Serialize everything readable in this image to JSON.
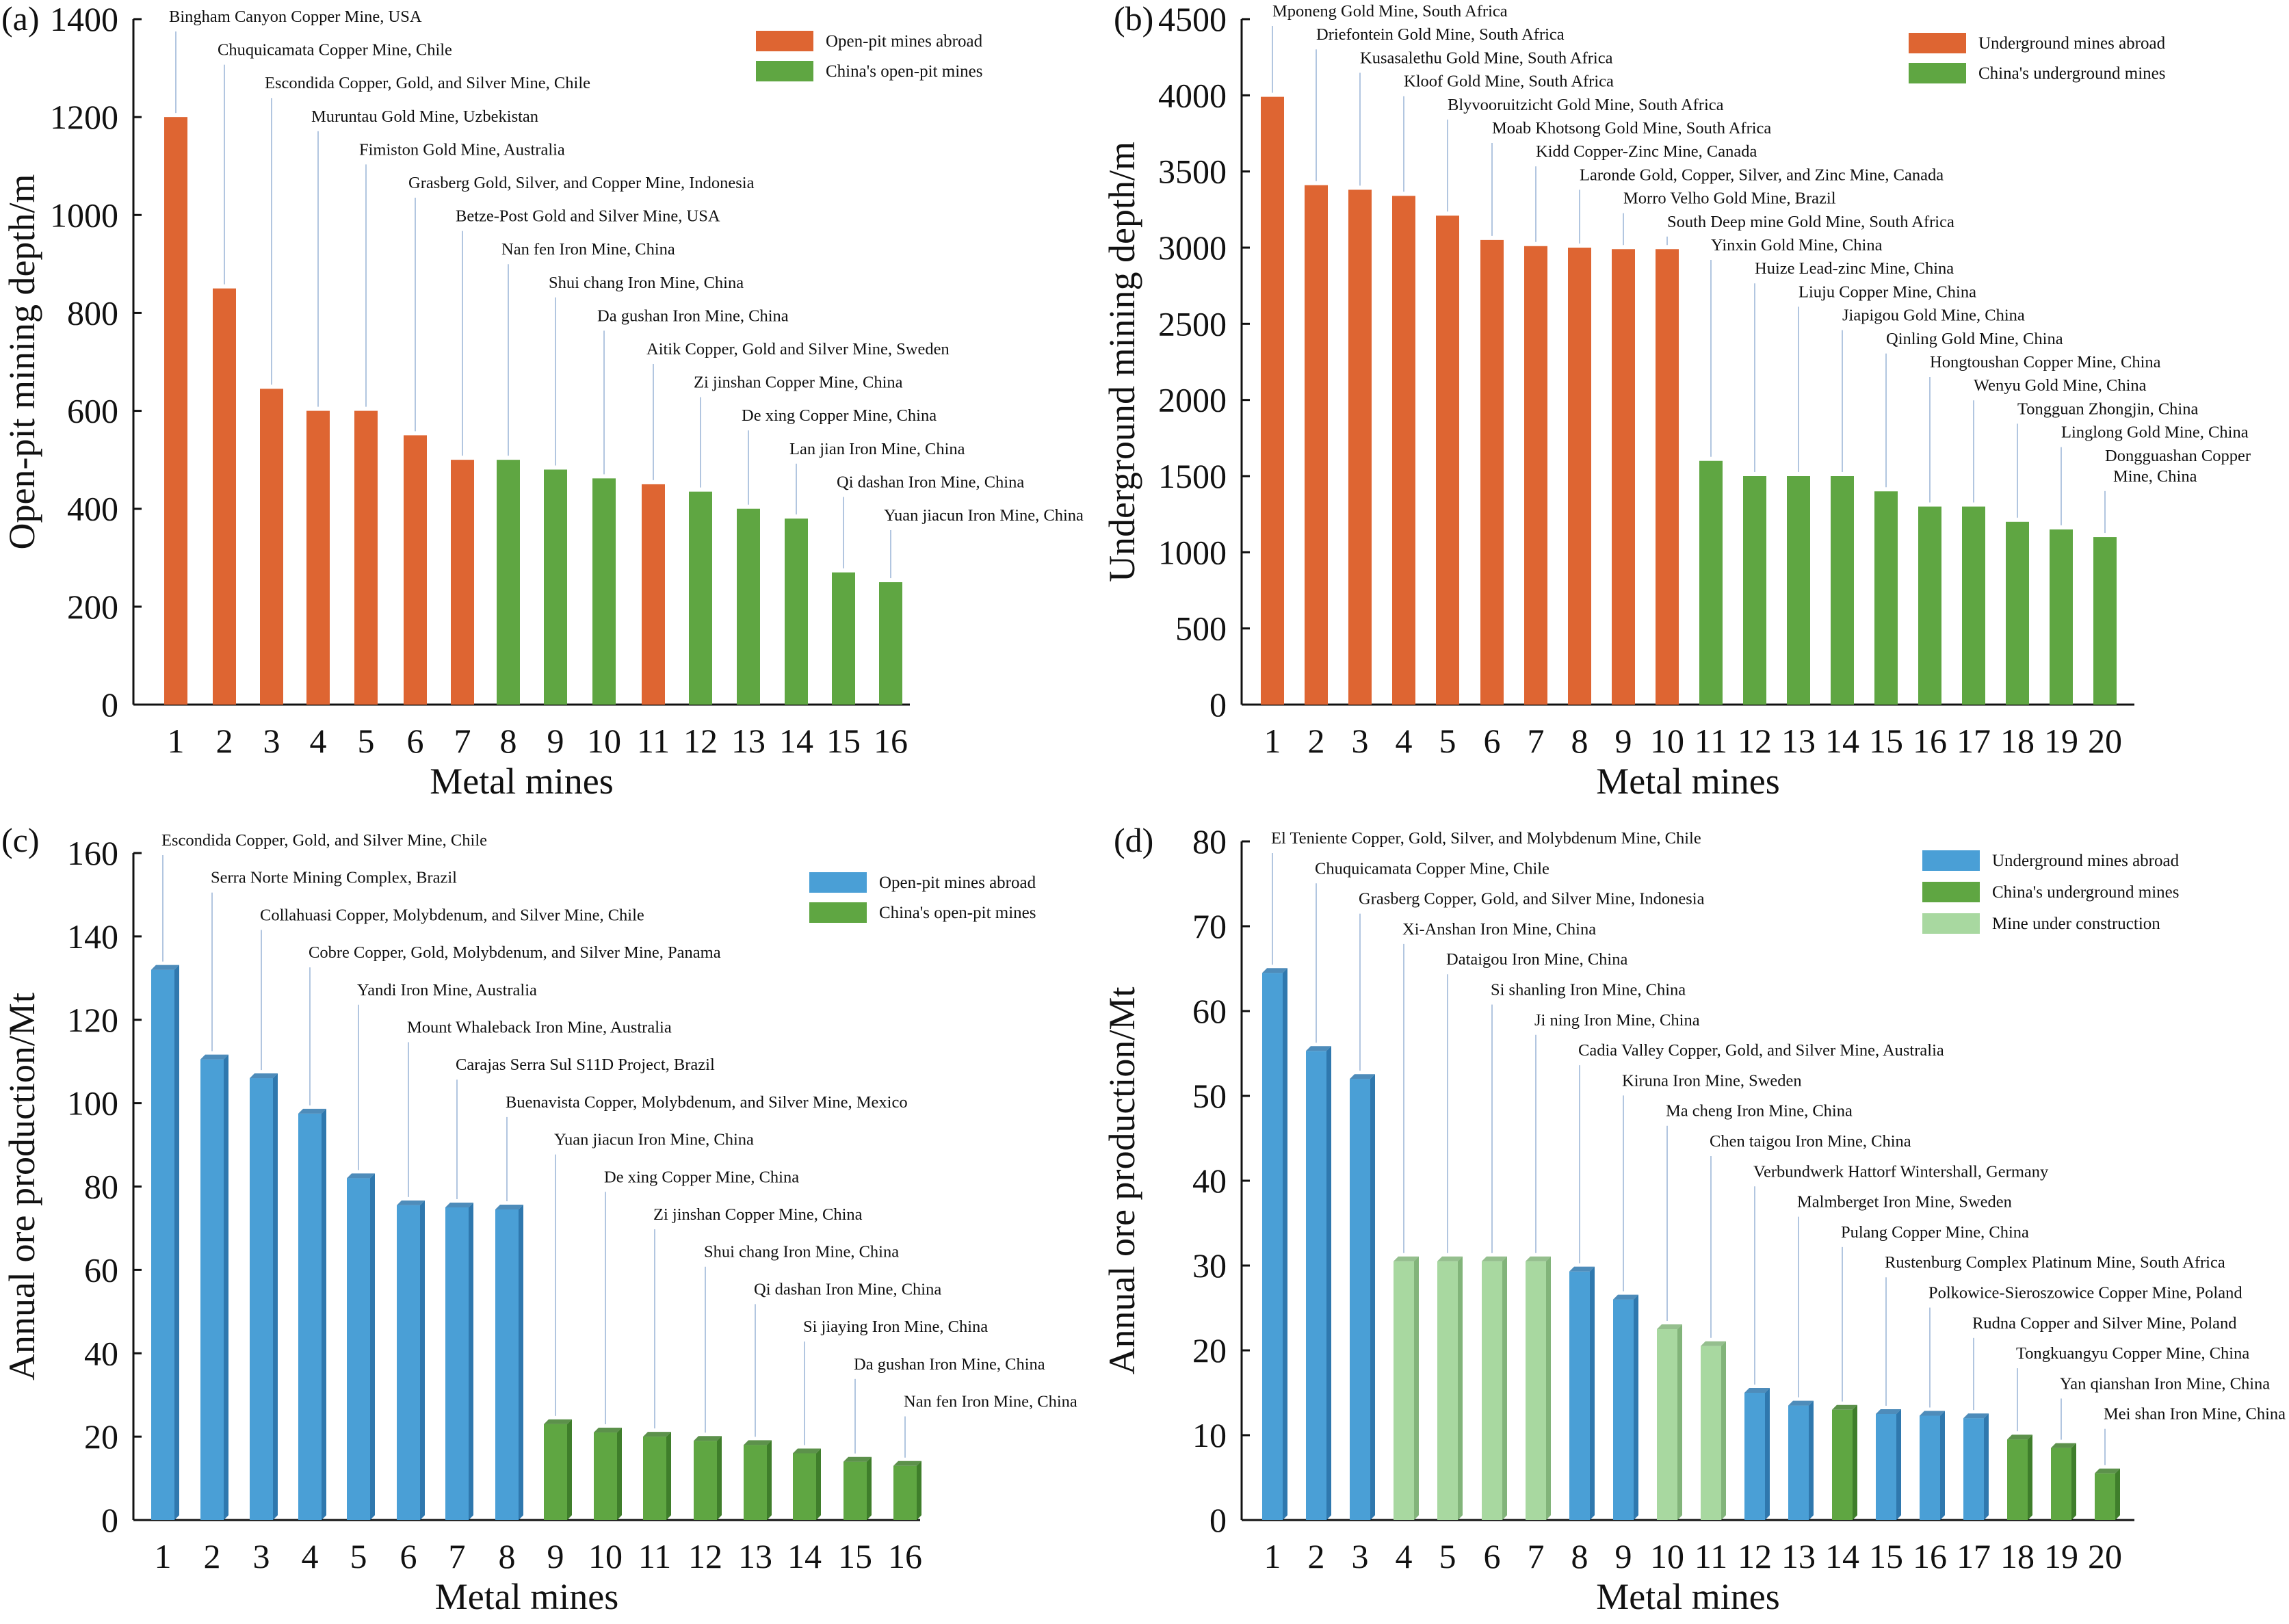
{
  "colors": {
    "orange": "#DE6532",
    "green": "#5FA642",
    "green_dark": "#3F7E2B",
    "blue": "#4A9FD6",
    "blue_dark": "#2F78AE",
    "light_green": "#A8D8A0",
    "light_green_dark": "#82B47A"
  },
  "chart_data": [
    {
      "panel_label": "(a)",
      "type": "bar",
      "ylabel": "Open-pit mining depth/m",
      "xlabel": "Metal mines",
      "ylim": [
        0,
        1400
      ],
      "yticks": [
        0,
        200,
        400,
        600,
        800,
        1000,
        1200,
        1400
      ],
      "categories": [
        "1",
        "2",
        "3",
        "4",
        "5",
        "6",
        "7",
        "8",
        "9",
        "10",
        "11",
        "12",
        "13",
        "14",
        "15",
        "16"
      ],
      "values": [
        1200,
        850,
        645,
        600,
        600,
        550,
        500,
        500,
        480,
        462,
        450,
        435,
        400,
        380,
        270,
        250
      ],
      "groups": [
        0,
        0,
        0,
        0,
        0,
        0,
        0,
        1,
        1,
        1,
        0,
        1,
        1,
        1,
        1,
        1
      ],
      "legend": [
        {
          "label": "Open-pit mines abroad",
          "color": "#DE6532"
        },
        {
          "label": "China's open-pit mines",
          "color": "#5FA642"
        }
      ],
      "legend_placement": "top-right",
      "annotations": [
        "Bingham Canyon Copper Mine, USA",
        "Chuquicamata Copper Mine, Chile",
        "Escondida Copper, Gold, and Silver Mine, Chile",
        "Muruntau Gold Mine, Uzbekistan",
        "Fimiston Gold Mine, Australia",
        "Grasberg Gold, Silver, and Copper Mine, Indonesia",
        "Betze-Post Gold and Silver Mine, USA",
        "Nan fen Iron Mine, China",
        "Shui chang Iron Mine, China",
        "Da gushan Iron Mine, China",
        "Aitik Copper, Gold and Silver Mine, Sweden",
        "Zi jinshan Copper Mine, China",
        "De xing Copper Mine, China",
        "Lan jian Iron Mine, China",
        "Qi dashan Iron Mine, China",
        "Yuan jiacun Iron Mine, China"
      ]
    },
    {
      "panel_label": "(b)",
      "type": "bar",
      "ylabel": "Underground mining depth/m",
      "xlabel": "Metal mines",
      "ylim": [
        0,
        4500
      ],
      "yticks": [
        0,
        500,
        1000,
        1500,
        2000,
        2500,
        3000,
        3500,
        4000,
        4500
      ],
      "categories": [
        "1",
        "2",
        "3",
        "4",
        "5",
        "6",
        "7",
        "8",
        "9",
        "10",
        "11",
        "12",
        "13",
        "14",
        "15",
        "16",
        "17",
        "18",
        "19",
        "20"
      ],
      "values": [
        3990,
        3410,
        3380,
        3340,
        3210,
        3050,
        3010,
        3000,
        2990,
        2990,
        1600,
        1500,
        1500,
        1500,
        1400,
        1300,
        1300,
        1200,
        1150,
        1100
      ],
      "groups": [
        0,
        0,
        0,
        0,
        0,
        0,
        0,
        0,
        0,
        0,
        1,
        1,
        1,
        1,
        1,
        1,
        1,
        1,
        1,
        1
      ],
      "legend": [
        {
          "label": "Underground mines abroad",
          "color": "#DE6532"
        },
        {
          "label": "China's underground mines",
          "color": "#5FA642"
        }
      ],
      "legend_placement": "top-right",
      "annotations": [
        "Mponeng Gold Mine, South Africa",
        "Driefontein Gold Mine, South Africa",
        "Kusasalethu Gold Mine, South Africa",
        "Kloof Gold Mine, South Africa",
        "Blyvooruitzicht Gold Mine, South Africa",
        "Moab Khotsong Gold Mine, South Africa",
        "Kidd Copper-Zinc Mine, Canada",
        "Laronde Gold, Copper, Silver, and Zinc Mine, Canada",
        "Morro Velho Gold Mine, Brazil",
        "South Deep mine Gold Mine, South Africa",
        "Yinxin Gold Mine, China",
        "Huize Lead-zinc Mine, China",
        "Liuju Copper Mine, China",
        "Jiapigou Gold Mine, China",
        "Qinling Gold Mine, China",
        "Hongtoushan Copper Mine, China",
        "Wenyu Gold Mine, China",
        "Tongguan Zhongjin, China",
        "Linglong Gold Mine, China",
        "Dongguashan Copper|Mine, China"
      ]
    },
    {
      "panel_label": "(c)",
      "type": "bar",
      "ylabel": "Annual ore production/Mt",
      "xlabel": "Metal mines",
      "ylim": [
        0,
        160
      ],
      "yticks": [
        0,
        20,
        40,
        60,
        80,
        100,
        120,
        140,
        160
      ],
      "categories": [
        "1",
        "2",
        "3",
        "4",
        "5",
        "6",
        "7",
        "8",
        "9",
        "10",
        "11",
        "12",
        "13",
        "14",
        "15",
        "16"
      ],
      "values": [
        132,
        110.5,
        106,
        97.5,
        82,
        75.5,
        75,
        74.5,
        23,
        21,
        20,
        19,
        18,
        16,
        14,
        13
      ],
      "groups": [
        0,
        0,
        0,
        0,
        0,
        0,
        0,
        0,
        1,
        1,
        1,
        1,
        1,
        1,
        1,
        1
      ],
      "legend": [
        {
          "label": "Open-pit mines abroad",
          "color": "#4A9FD6"
        },
        {
          "label": "China's open-pit mines",
          "color": "#5FA642"
        }
      ],
      "legend_placement": "top-right",
      "annotations": [
        "Escondida Copper, Gold, and Silver Mine, Chile",
        "Serra Norte Mining Complex, Brazil",
        "Collahuasi Copper, Molybdenum, and Silver Mine, Chile",
        "Cobre Copper, Gold, Molybdenum, and Silver Mine, Panama",
        "Yandi Iron Mine, Australia",
        "Mount Whaleback Iron Mine, Australia",
        "Carajas Serra Sul S11D Project, Brazil",
        "Buenavista Copper, Molybdenum, and Silver Mine, Mexico",
        "Yuan jiacun Iron Mine, China",
        "De xing Copper Mine, China",
        "Zi jinshan Copper Mine, China",
        "Shui chang Iron Mine, China",
        "Qi dashan Iron Mine, China",
        "Si jiaying Iron Mine, China",
        "Da gushan Iron Mine, China",
        "Nan fen Iron Mine, China"
      ]
    },
    {
      "panel_label": "(d)",
      "type": "bar",
      "ylabel": "Annual ore production/Mt",
      "xlabel": "Metal mines",
      "ylim": [
        0,
        80
      ],
      "yticks": [
        0,
        10,
        20,
        30,
        40,
        50,
        60,
        70,
        80
      ],
      "categories": [
        "1",
        "2",
        "3",
        "4",
        "5",
        "6",
        "7",
        "8",
        "9",
        "10",
        "11",
        "12",
        "13",
        "14",
        "15",
        "16",
        "17",
        "18",
        "19",
        "20"
      ],
      "values": [
        64.5,
        55.3,
        52,
        30.5,
        30.5,
        30.5,
        30.5,
        29.3,
        26,
        22.5,
        20.5,
        15,
        13.5,
        13,
        12.5,
        12.3,
        12,
        9.5,
        8.5,
        5.5
      ],
      "groups": [
        0,
        0,
        0,
        2,
        2,
        2,
        2,
        0,
        0,
        2,
        2,
        0,
        0,
        1,
        0,
        0,
        0,
        1,
        1,
        1
      ],
      "legend": [
        {
          "label": "Underground mines abroad",
          "color": "#4A9FD6"
        },
        {
          "label": "China's underground mines",
          "color": "#5FA642"
        },
        {
          "label": "Mine under construction",
          "color": "#A8D8A0"
        }
      ],
      "legend_placement": "top-right",
      "annotations": [
        "El Teniente Copper, Gold, Silver, and Molybdenum Mine, Chile",
        "Chuquicamata Copper Mine, Chile",
        "Grasberg Copper, Gold, and Silver Mine, Indonesia",
        "Xi-Anshan Iron Mine, China",
        "Dataigou Iron Mine, China",
        "Si shanling Iron Mine, China",
        "Ji ning Iron Mine, China",
        "Cadia Valley Copper, Gold, and Silver Mine, Australia",
        "Kiruna Iron Mine, Sweden",
        "Ma cheng Iron Mine, China",
        "Chen taigou Iron Mine, China",
        "Verbundwerk Hattorf Wintershall, Germany",
        "Malmberget Iron Mine, Sweden",
        "Pulang Copper Mine, China",
        "Rustenburg Complex Platinum Mine, South Africa",
        "Polkowice-Sieroszowice Copper Mine, Poland",
        "Rudna Copper and Silver Mine, Poland",
        "Tongkuangyu Copper Mine, China",
        "Yan qianshan Iron Mine, China",
        "Mei shan Iron Mine, China"
      ]
    }
  ]
}
